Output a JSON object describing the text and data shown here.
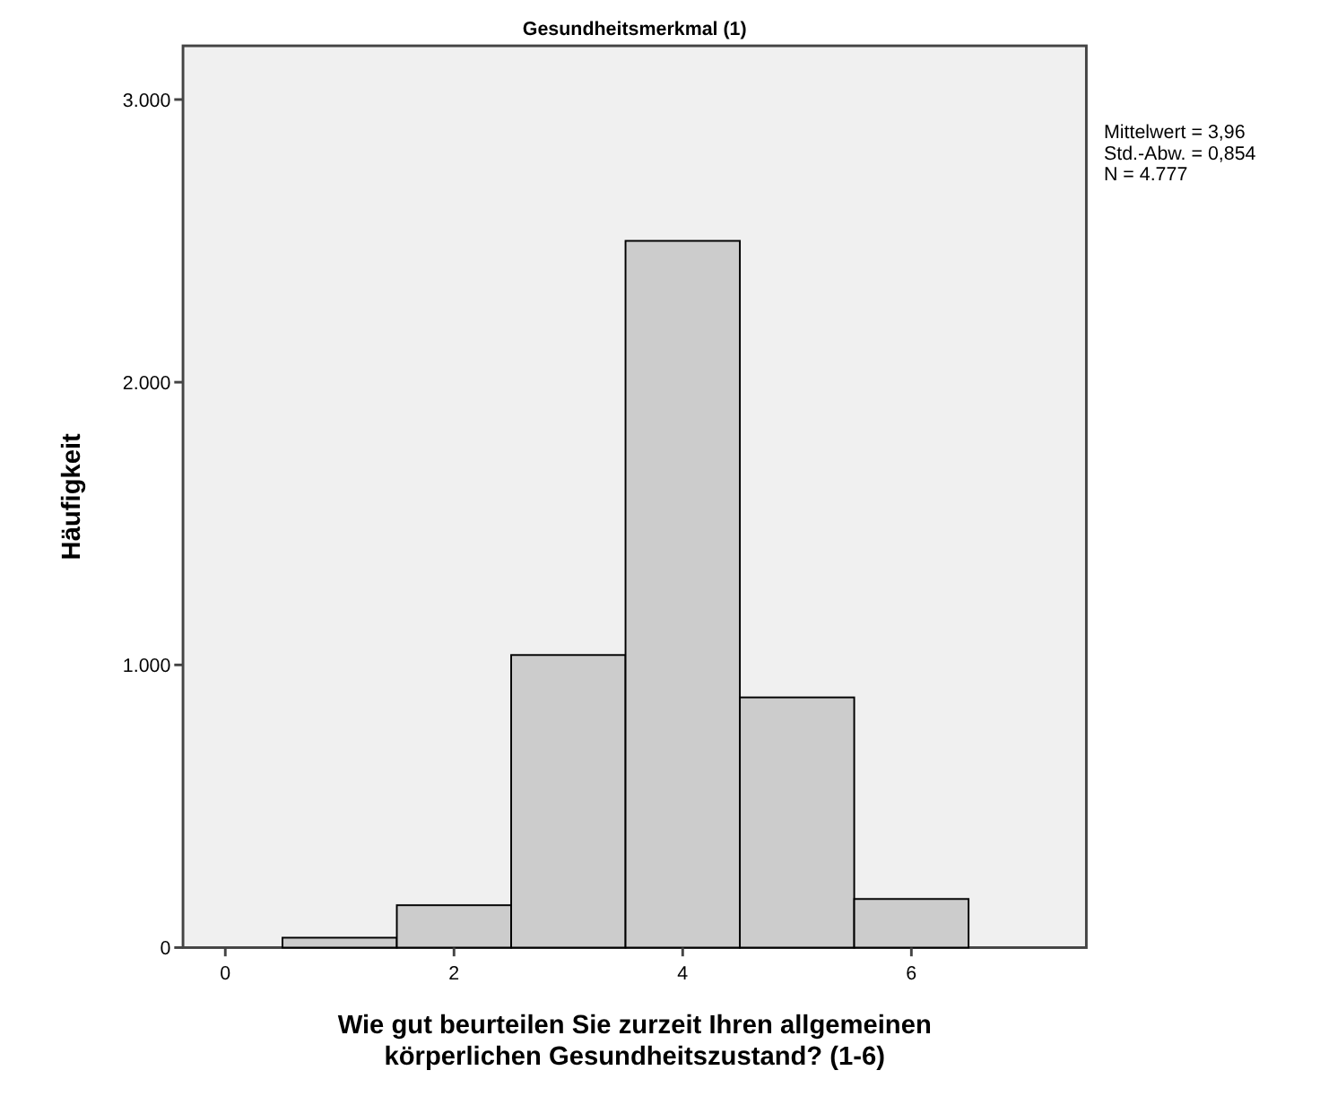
{
  "chart_data": {
    "type": "histogram",
    "title": "Gesundheitsmerkmal (1)",
    "xlabel": "Wie gut beurteilen Sie zurzeit Ihren allgemeinen körperlichen Gesundheitszustand? (1-6)",
    "ylabel": "Häufigkeit",
    "bins": [
      0.5,
      1.5,
      2.5,
      3.5,
      4.5,
      5.5,
      6.5
    ],
    "values": [
      35,
      150,
      1035,
      2500,
      885,
      172
    ],
    "color": "#cccccc",
    "xlim": [
      -0.37,
      7.53
    ],
    "xticks": [
      0,
      2,
      4,
      6
    ],
    "ylim": [
      0,
      3190
    ],
    "yticks": [
      {
        "value": 0,
        "label": "0"
      },
      {
        "value": 1000,
        "label": "1.000"
      },
      {
        "value": 2000,
        "label": "2.000"
      },
      {
        "value": 3000,
        "label": "3.000"
      }
    ],
    "annotations": [
      "Mittelwert = 3,96",
      "Std.-Abw. = 0,854",
      "N = 4.777"
    ],
    "grid": false
  }
}
